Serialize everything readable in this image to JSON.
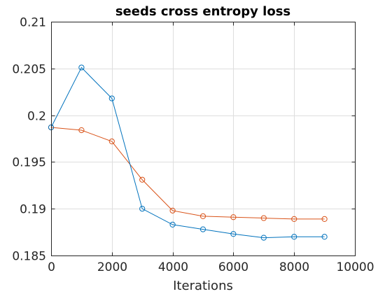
{
  "chart_data": {
    "type": "line",
    "title": "seeds cross entropy loss",
    "xlabel": "Iterations",
    "ylabel": "",
    "xlim": [
      0,
      10000
    ],
    "ylim": [
      0.185,
      0.21
    ],
    "xticks": [
      0,
      2000,
      4000,
      6000,
      8000,
      10000
    ],
    "xtick_labels": [
      "0",
      "2000",
      "4000",
      "6000",
      "8000",
      "10000"
    ],
    "yticks": [
      0.185,
      0.19,
      0.195,
      0.2,
      0.205,
      0.21
    ],
    "ytick_labels": [
      "0.185",
      "0.19",
      "0.195",
      "0.2",
      "0.205",
      "0.21"
    ],
    "grid": true,
    "box": true,
    "marker": "circle-open",
    "x": [
      0,
      1000,
      2000,
      3000,
      4000,
      5000,
      6000,
      7000,
      8000,
      9000
    ],
    "series": [
      {
        "color": "#0072bd",
        "values": [
          0.1987,
          0.2051,
          0.2018,
          0.19,
          0.1883,
          0.1878,
          0.1873,
          0.1869,
          0.187,
          0.187
        ]
      },
      {
        "color": "#d95319",
        "values": [
          0.1987,
          0.1984,
          0.1972,
          0.1931,
          0.1898,
          0.1892,
          0.1891,
          0.189,
          0.1889,
          0.1889
        ]
      }
    ]
  }
}
